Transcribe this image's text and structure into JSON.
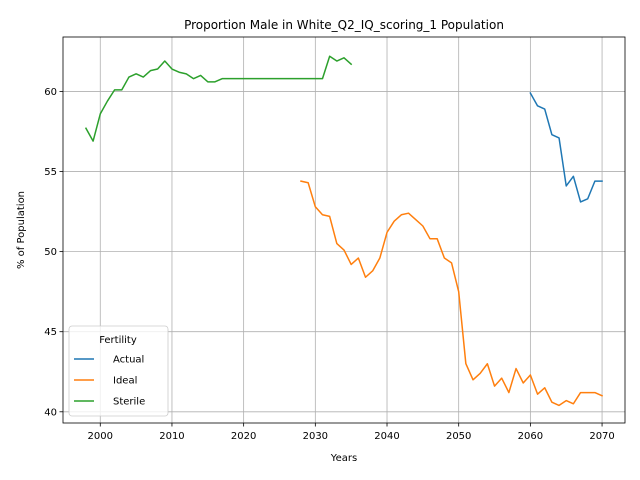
{
  "chart_data": {
    "type": "line",
    "title": "Proportion Male in White_Q2_IQ_scoring_1 Population",
    "xlabel": "Years",
    "ylabel": "% of Population",
    "xlim": [
      1994.8,
      2073.2
    ],
    "ylim": [
      39.3,
      63.4
    ],
    "xticks": [
      2000,
      2010,
      2020,
      2030,
      2040,
      2050,
      2060,
      2070
    ],
    "yticks": [
      40,
      45,
      50,
      55,
      60
    ],
    "grid": true,
    "legend": {
      "title": "Fertility",
      "placement": "lower-left"
    },
    "series": [
      {
        "name": "Actual",
        "color": "#1f77b4",
        "x": [
          2060,
          2061,
          2062,
          2063,
          2064,
          2065,
          2066,
          2067,
          2068,
          2069,
          2070
        ],
        "y": [
          59.9,
          59.1,
          58.9,
          57.3,
          57.1,
          54.1,
          54.7,
          53.1,
          53.3,
          54.4,
          54.4
        ]
      },
      {
        "name": "Ideal",
        "color": "#ff7f0e",
        "x": [
          2028,
          2029,
          2030,
          2031,
          2032,
          2033,
          2034,
          2035,
          2036,
          2037,
          2038,
          2039,
          2040,
          2041,
          2042,
          2043,
          2044,
          2045,
          2046,
          2047,
          2048,
          2049,
          2050,
          2051,
          2052,
          2053,
          2054,
          2055,
          2056,
          2057,
          2058,
          2059,
          2060,
          2061,
          2062,
          2063,
          2064,
          2065,
          2066,
          2067,
          2068,
          2069,
          2070
        ],
        "y": [
          54.4,
          54.3,
          52.8,
          52.3,
          52.2,
          50.5,
          50.1,
          49.2,
          49.6,
          48.4,
          48.8,
          49.6,
          51.2,
          51.9,
          52.3,
          52.4,
          52.0,
          51.6,
          50.8,
          50.8,
          49.6,
          49.3,
          47.5,
          43.0,
          42.0,
          42.4,
          43.0,
          41.6,
          42.1,
          41.2,
          42.7,
          41.8,
          42.3,
          41.1,
          41.5,
          40.6,
          40.4,
          40.7,
          40.5,
          41.2,
          41.2,
          41.2,
          41.0
        ]
      },
      {
        "name": "Sterile",
        "color": "#2ca02c",
        "x": [
          1998,
          1999,
          2000,
          2001,
          2002,
          2003,
          2004,
          2005,
          2006,
          2007,
          2008,
          2009,
          2010,
          2011,
          2012,
          2013,
          2014,
          2015,
          2016,
          2017,
          2018,
          2019,
          2020,
          2021,
          2022,
          2023,
          2024,
          2025,
          2026,
          2027,
          2028,
          2029,
          2030,
          2031,
          2032,
          2033,
          2034,
          2035
        ],
        "y": [
          57.7,
          56.9,
          58.6,
          59.4,
          60.1,
          60.1,
          60.9,
          61.1,
          60.9,
          61.3,
          61.4,
          61.9,
          61.4,
          61.2,
          61.1,
          60.8,
          61.0,
          60.6,
          60.6,
          60.8,
          60.8,
          60.8,
          60.8,
          60.8,
          60.8,
          60.8,
          60.8,
          60.8,
          60.8,
          60.8,
          60.8,
          60.8,
          60.8,
          60.8,
          62.2,
          61.9,
          62.1,
          61.7
        ]
      }
    ]
  }
}
